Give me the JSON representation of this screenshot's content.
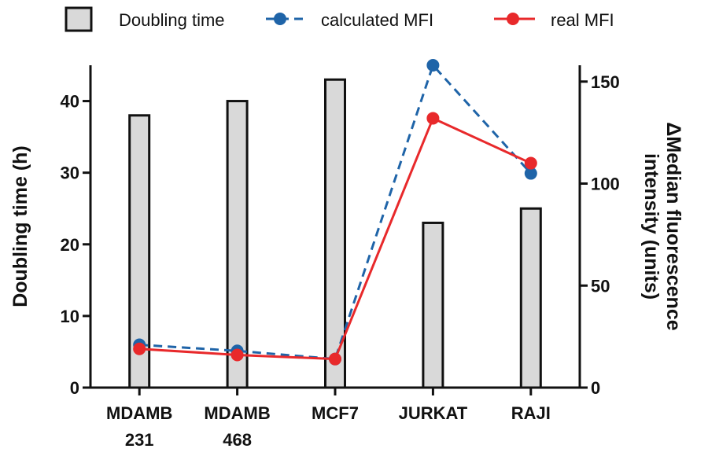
{
  "chart_data": {
    "type": "bar",
    "categories": [
      [
        "MDAMB",
        "231"
      ],
      [
        "MDAMB",
        "468"
      ],
      [
        "MCF7"
      ],
      [
        "JURKAT"
      ],
      [
        "RAJI"
      ]
    ],
    "legend": [
      {
        "name": "Doubling time",
        "kind": "bar"
      },
      {
        "name": "calculated MFI",
        "kind": "line-dashed"
      },
      {
        "name": "real MFI",
        "kind": "line"
      }
    ],
    "left_axis": {
      "label": "Doubling time (h)",
      "ylim": [
        0,
        45
      ],
      "ticks": [
        0,
        10,
        20,
        30,
        40
      ]
    },
    "right_axis": {
      "label_lines": [
        "ΔMedian fluorescence",
        "intensity (units)"
      ],
      "ylim": [
        0,
        158
      ],
      "ticks": [
        0,
        50,
        100,
        150
      ]
    },
    "series": [
      {
        "name": "Doubling time",
        "type": "bar",
        "axis": "left",
        "values": [
          38,
          40,
          43,
          23,
          25
        ],
        "color": "#d9d9d9"
      },
      {
        "name": "calculated MFI",
        "type": "line",
        "axis": "right",
        "style": "dashed",
        "values": [
          21,
          18,
          14,
          158,
          105
        ],
        "color": "#1f64a8"
      },
      {
        "name": "real MFI",
        "type": "line",
        "axis": "right",
        "style": "solid",
        "values": [
          19,
          16,
          14,
          132,
          110
        ],
        "color": "#e8292b"
      }
    ]
  }
}
